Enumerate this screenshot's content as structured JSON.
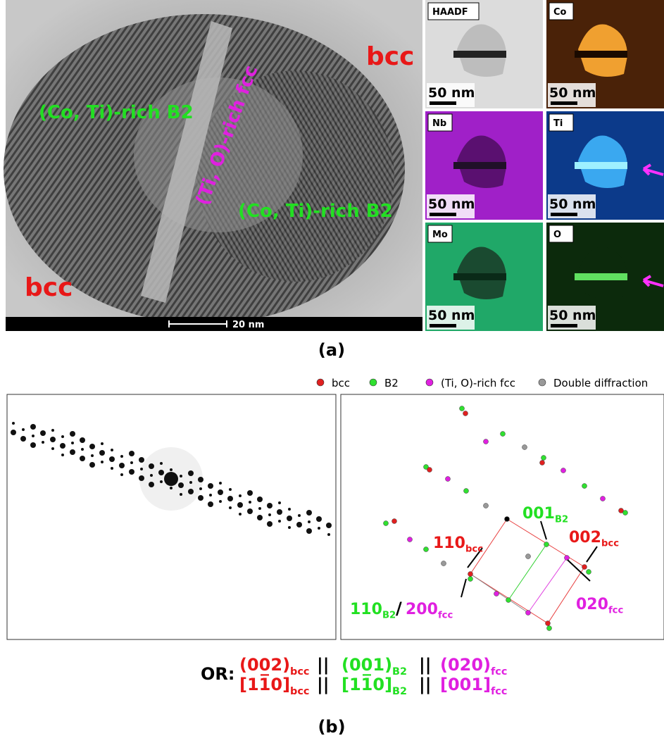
{
  "panel_a": {
    "hrtem": {
      "labels": [
        "bcc",
        "(Co, Ti)-rich B2",
        "(Ti, O)-rich fcc",
        "(Co, Ti)-rich B2",
        "bcc"
      ],
      "scale_bar": "20 nm"
    },
    "maps": [
      {
        "label": "HAADF",
        "scale_bar": "50 nm"
      },
      {
        "label": "Co",
        "scale_bar": "50 nm"
      },
      {
        "label": "Nb",
        "scale_bar": "50 nm"
      },
      {
        "label": "Ti",
        "scale_bar": "50 nm"
      },
      {
        "label": "Mo",
        "scale_bar": "50 nm"
      },
      {
        "label": "O",
        "scale_bar": "50 nm"
      }
    ],
    "caption": "(a)"
  },
  "panel_b": {
    "legend": [
      "bcc",
      "B2",
      "(Ti, O)-rich fcc",
      "Double diffraction"
    ],
    "annotations": [
      {
        "text": "110",
        "sub": "bcc"
      },
      {
        "text": "001",
        "sub": "B2"
      },
      {
        "text": "002",
        "sub": "bcc"
      },
      {
        "text": "020",
        "sub": "fcc"
      },
      {
        "text": "110",
        "sub": "B2"
      },
      {
        "text": "200",
        "sub": "fcc"
      }
    ],
    "separator": "/",
    "orientation": {
      "label": "OR:",
      "rows": [
        [
          {
            "text": "(002)",
            "sub": "bcc"
          },
          {
            "text": "(001)",
            "sub": "B2"
          },
          {
            "text": "(020)",
            "sub": "fcc"
          }
        ],
        [
          {
            "text": "[11̅0]",
            "sub": "bcc"
          },
          {
            "text": "[11̅0]",
            "sub": "B2"
          },
          {
            "text": "[001]",
            "sub": "fcc"
          }
        ]
      ],
      "joiner": "||"
    },
    "caption": "(b)"
  }
}
